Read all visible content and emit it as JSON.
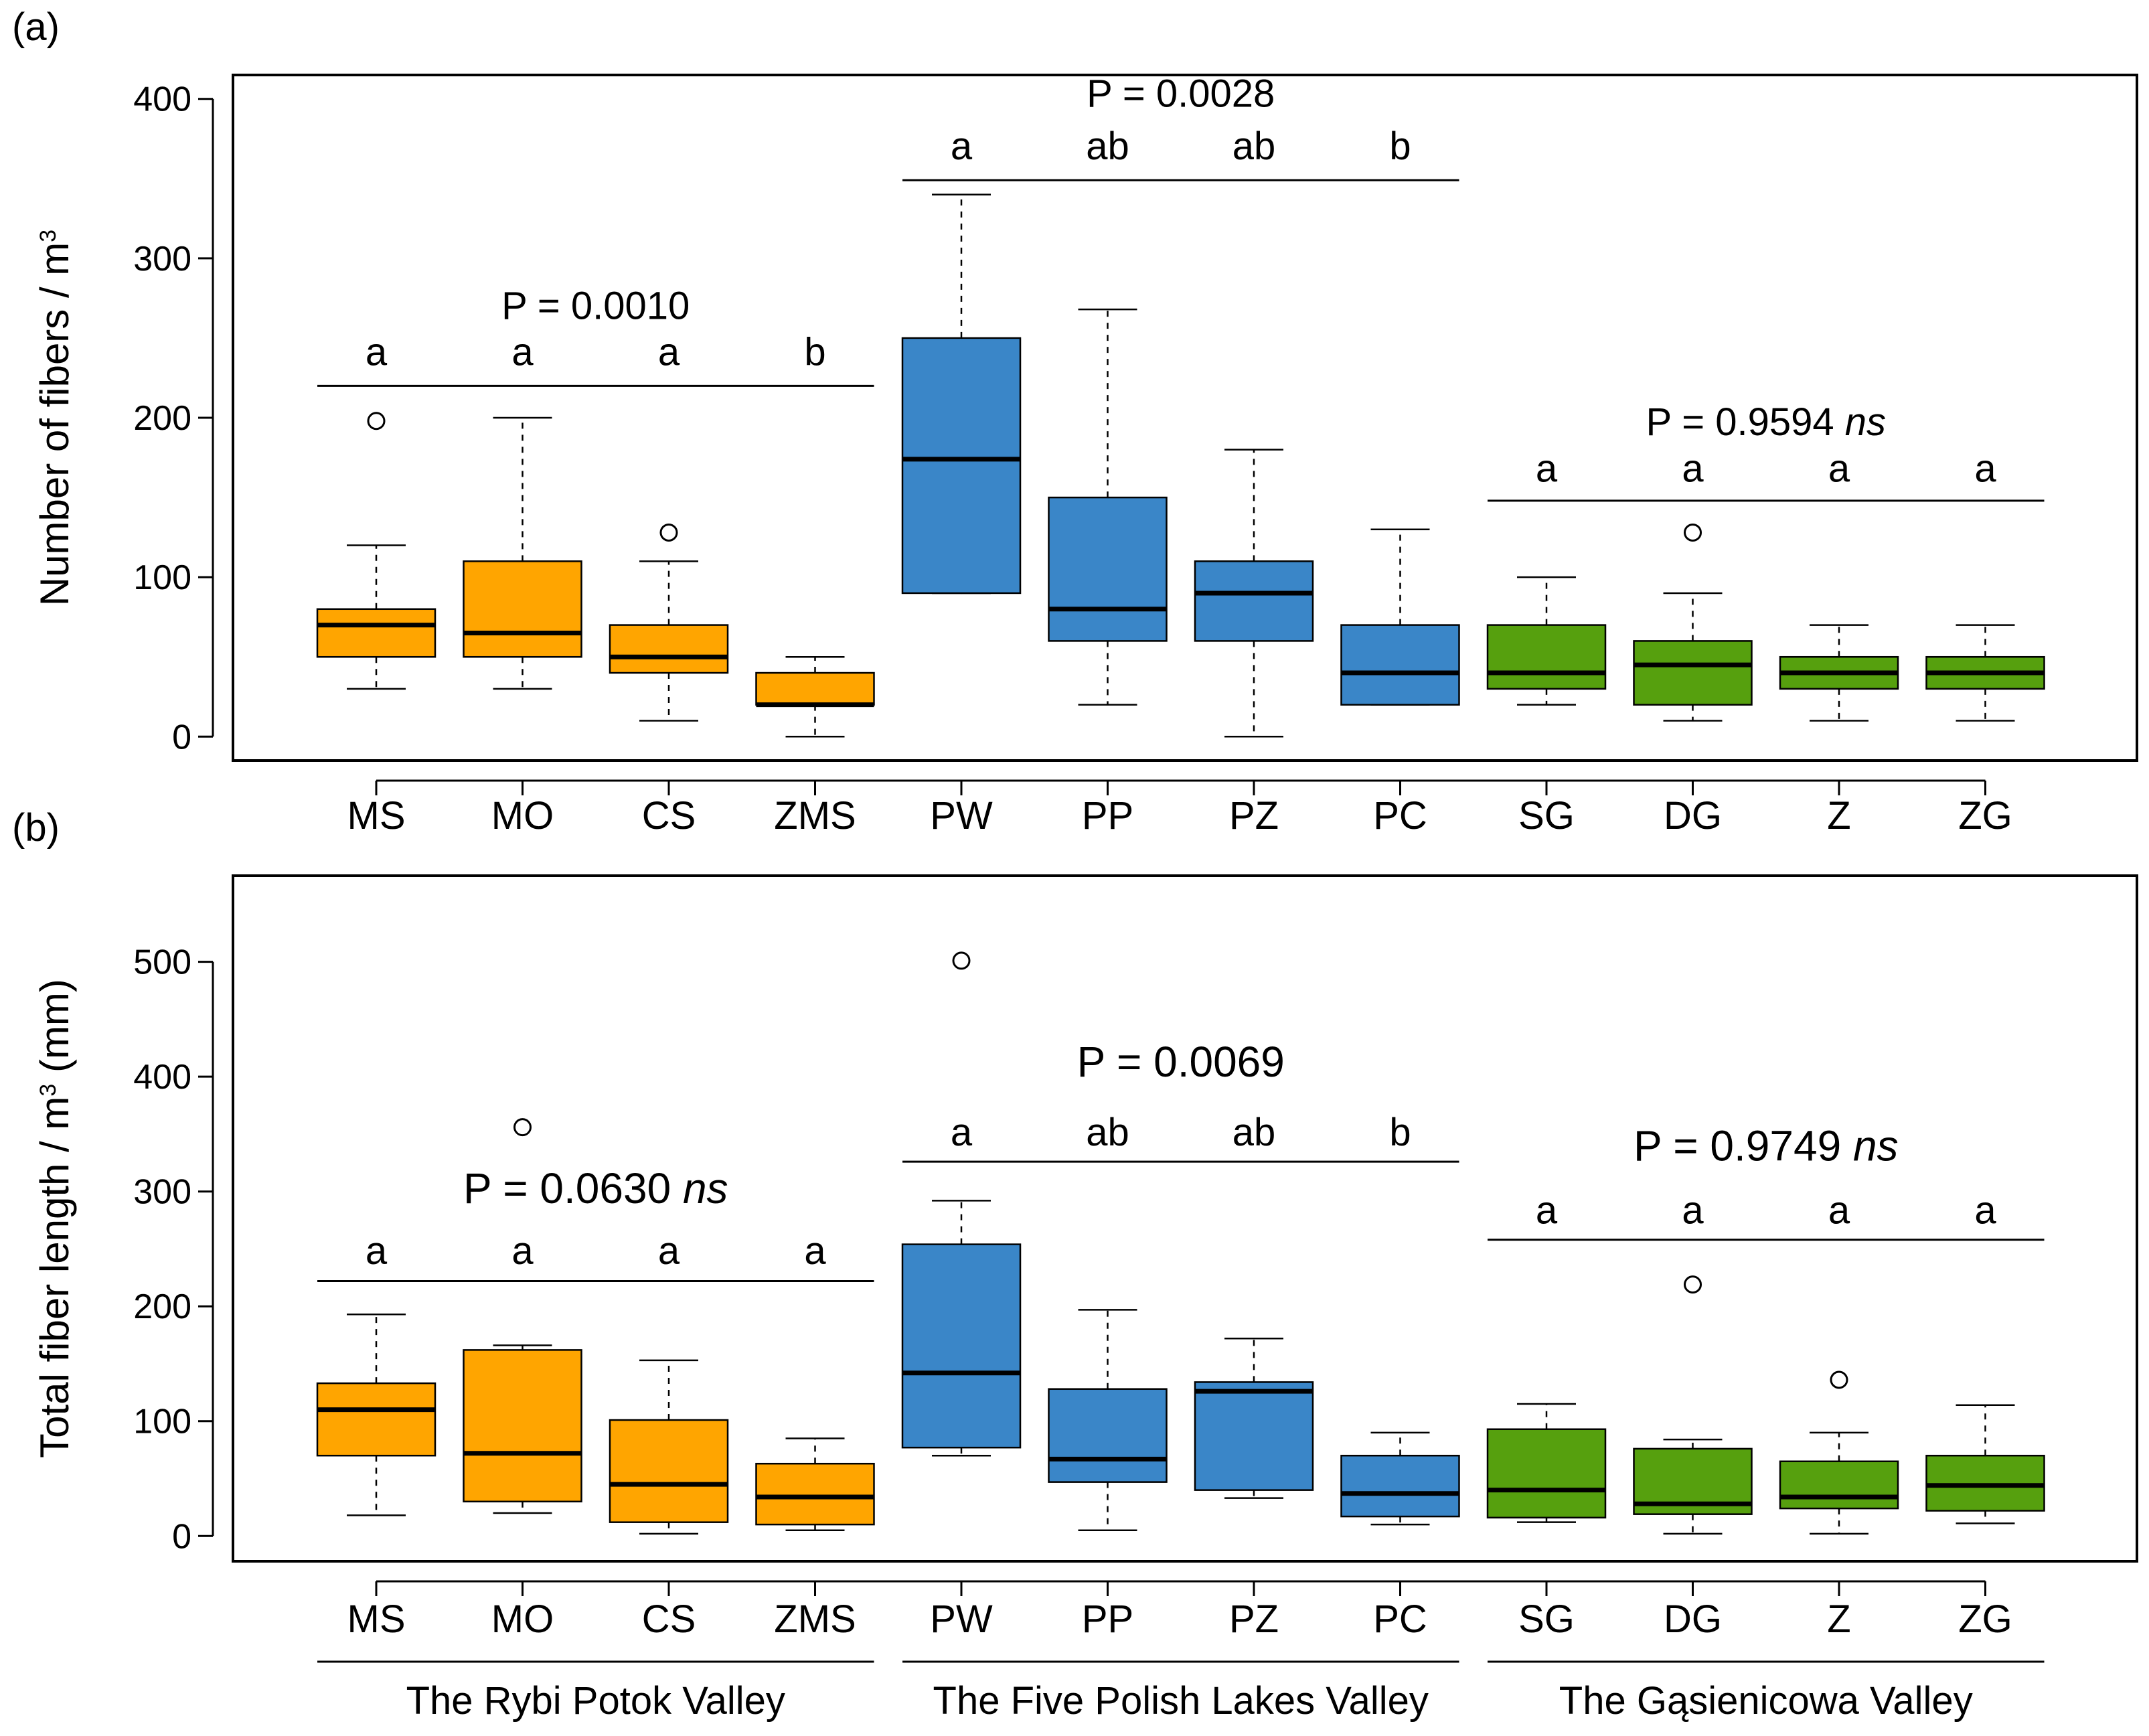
{
  "chart_data": [
    {
      "type": "box",
      "panel_label": "(a)",
      "ylabel": "Number of fibers / m",
      "ylabel_sup": "3",
      "ylabel_suffix": "",
      "ylim": [
        -15,
        415
      ],
      "yticks": [
        0,
        100,
        200,
        300,
        400
      ],
      "categories": [
        "MS",
        "MO",
        "CS",
        "ZMS",
        "PW",
        "PP",
        "PZ",
        "PC",
        "SG",
        "DG",
        "Z",
        "ZG"
      ],
      "colors": [
        "#FFA500",
        "#FFA500",
        "#FFA500",
        "#FFA500",
        "#3A86C8",
        "#3A86C8",
        "#3A86C8",
        "#3A86C8",
        "#56A00E",
        "#56A00E",
        "#56A00E",
        "#56A00E"
      ],
      "boxes": [
        {
          "whisker_low": 30,
          "q1": 50,
          "median": 70,
          "q3": 80,
          "whisker_high": 120,
          "outliers": [
            198
          ]
        },
        {
          "whisker_low": 30,
          "q1": 50,
          "median": 65,
          "q3": 110,
          "whisker_high": 200,
          "outliers": []
        },
        {
          "whisker_low": 10,
          "q1": 40,
          "median": 50,
          "q3": 70,
          "whisker_high": 110,
          "outliers": [
            128
          ]
        },
        {
          "whisker_low": 0,
          "q1": 20,
          "median": 20,
          "q3": 40,
          "whisker_high": 50,
          "outliers": []
        },
        {
          "whisker_low": 90,
          "q1": 90,
          "median": 174,
          "q3": 250,
          "whisker_high": 340,
          "outliers": []
        },
        {
          "whisker_low": 20,
          "q1": 60,
          "median": 80,
          "q3": 150,
          "whisker_high": 268,
          "outliers": []
        },
        {
          "whisker_low": 0,
          "q1": 60,
          "median": 90,
          "q3": 110,
          "whisker_high": 180,
          "outliers": []
        },
        {
          "whisker_low": 20,
          "q1": 20,
          "median": 40,
          "q3": 70,
          "whisker_high": 130,
          "outliers": []
        },
        {
          "whisker_low": 20,
          "q1": 30,
          "median": 40,
          "q3": 70,
          "whisker_high": 100,
          "outliers": []
        },
        {
          "whisker_low": 10,
          "q1": 20,
          "median": 45,
          "q3": 60,
          "whisker_high": 90,
          "outliers": [
            128
          ]
        },
        {
          "whisker_low": 10,
          "q1": 30,
          "median": 40,
          "q3": 50,
          "whisker_high": 70,
          "outliers": []
        },
        {
          "whisker_low": 10,
          "q1": 30,
          "median": 40,
          "q3": 50,
          "whisker_high": 70,
          "outliers": []
        }
      ],
      "groups": [
        {
          "start": 0,
          "end": 3,
          "p_label": "P = 0.0010",
          "ns": "",
          "line_y": 220,
          "p_y": 262,
          "letter_y": 233,
          "big": false,
          "letters": [
            "a",
            "a",
            "a",
            "b"
          ]
        },
        {
          "start": 4,
          "end": 7,
          "p_label": "P = 0.0028",
          "ns": "",
          "line_y": 349,
          "p_y": 395,
          "letter_y": 362,
          "big": false,
          "letters": [
            "a",
            "ab",
            "ab",
            "b"
          ]
        },
        {
          "start": 8,
          "end": 11,
          "p_label": "P = 0.9594 ",
          "ns": "ns",
          "line_y": 148,
          "p_y": 189,
          "letter_y": 160,
          "big": false,
          "letters": [
            "a",
            "a",
            "a",
            "a"
          ]
        }
      ]
    },
    {
      "type": "box",
      "panel_label": "(b)",
      "ylabel": "Total fiber length / m",
      "ylabel_sup": "3",
      "ylabel_suffix": " (mm)",
      "ylim": [
        -22,
        575
      ],
      "yticks": [
        0,
        100,
        200,
        300,
        400,
        500
      ],
      "categories": [
        "MS",
        "MO",
        "CS",
        "ZMS",
        "PW",
        "PP",
        "PZ",
        "PC",
        "SG",
        "DG",
        "Z",
        "ZG"
      ],
      "colors": [
        "#FFA500",
        "#FFA500",
        "#FFA500",
        "#FFA500",
        "#3A86C8",
        "#3A86C8",
        "#3A86C8",
        "#3A86C8",
        "#56A00E",
        "#56A00E",
        "#56A00E",
        "#56A00E"
      ],
      "boxes": [
        {
          "whisker_low": 18,
          "q1": 70,
          "median": 110,
          "q3": 133,
          "whisker_high": 193,
          "outliers": []
        },
        {
          "whisker_low": 20,
          "q1": 30,
          "median": 72,
          "q3": 162,
          "whisker_high": 166,
          "outliers": [
            356
          ]
        },
        {
          "whisker_low": 2,
          "q1": 12,
          "median": 45,
          "q3": 101,
          "whisker_high": 153,
          "outliers": []
        },
        {
          "whisker_low": 5,
          "q1": 10,
          "median": 34,
          "q3": 63,
          "whisker_high": 85,
          "outliers": []
        },
        {
          "whisker_low": 70,
          "q1": 77,
          "median": 142,
          "q3": 254,
          "whisker_high": 292,
          "outliers": [
            501
          ]
        },
        {
          "whisker_low": 5,
          "q1": 47,
          "median": 67,
          "q3": 128,
          "whisker_high": 197,
          "outliers": []
        },
        {
          "whisker_low": 33,
          "q1": 40,
          "median": 126,
          "q3": 134,
          "whisker_high": 172,
          "outliers": []
        },
        {
          "whisker_low": 10,
          "q1": 17,
          "median": 37,
          "q3": 70,
          "whisker_high": 90,
          "outliers": []
        },
        {
          "whisker_low": 12,
          "q1": 16,
          "median": 40,
          "q3": 93,
          "whisker_high": 115,
          "outliers": []
        },
        {
          "whisker_low": 2,
          "q1": 19,
          "median": 28,
          "q3": 76,
          "whisker_high": 84,
          "outliers": [
            219
          ]
        },
        {
          "whisker_low": 2,
          "q1": 24,
          "median": 34,
          "q3": 65,
          "whisker_high": 90,
          "outliers": [
            136
          ]
        },
        {
          "whisker_low": 11,
          "q1": 22,
          "median": 44,
          "q3": 70,
          "whisker_high": 114,
          "outliers": []
        }
      ],
      "groups": [
        {
          "start": 0,
          "end": 3,
          "p_label": "P = 0.0630 ",
          "ns": "ns",
          "line_y": 222,
          "p_y": 290,
          "letter_y": 237,
          "big": true,
          "letters": [
            "a",
            "a",
            "a",
            "a"
          ]
        },
        {
          "start": 4,
          "end": 7,
          "p_label": "P = 0.0069",
          "ns": "",
          "line_y": 326,
          "p_y": 400,
          "letter_y": 340,
          "big": true,
          "letters": [
            "a",
            "ab",
            "ab",
            "b"
          ]
        },
        {
          "start": 8,
          "end": 11,
          "p_label": "P = 0.9749 ",
          "ns": "ns",
          "line_y": 258,
          "p_y": 327,
          "letter_y": 272,
          "big": true,
          "letters": [
            "a",
            "a",
            "a",
            "a"
          ]
        }
      ]
    }
  ],
  "valleys": [
    {
      "start": 0,
      "end": 3,
      "label": "The Rybi Potok Valley"
    },
    {
      "start": 4,
      "end": 7,
      "label": "The Five Polish Lakes Valley"
    },
    {
      "start": 8,
      "end": 11,
      "label": "The Gąsienicowa Valley"
    }
  ]
}
